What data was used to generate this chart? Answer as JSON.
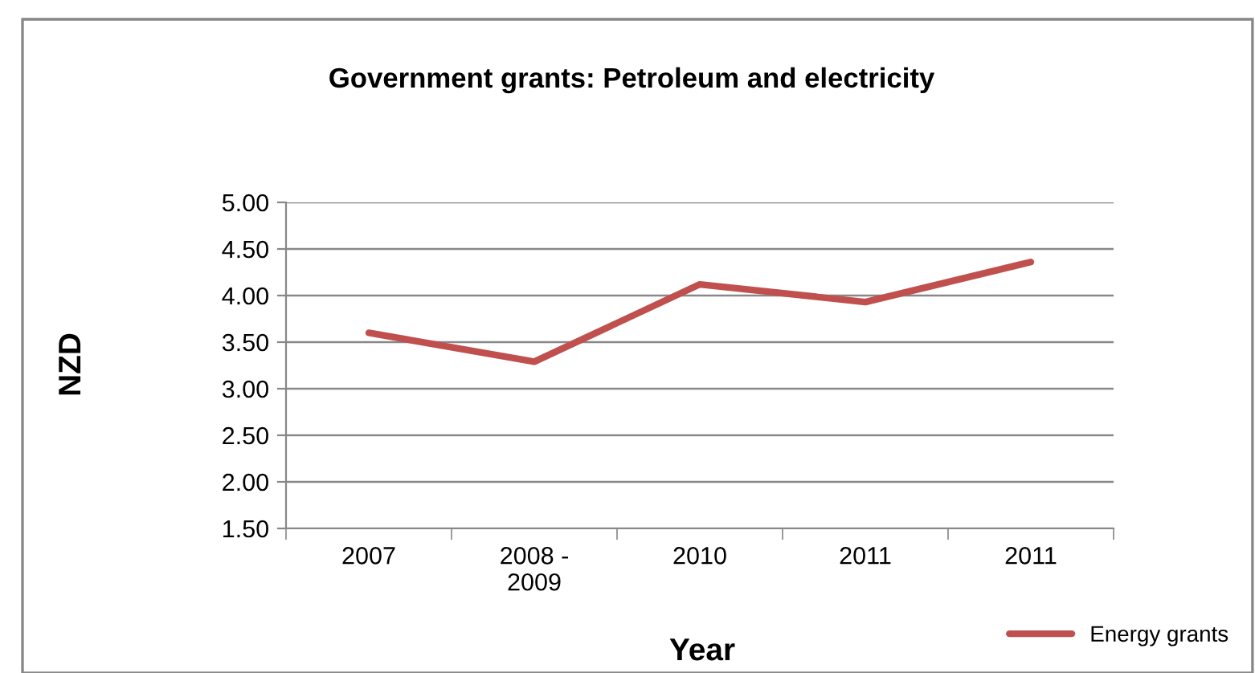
{
  "chart_data": {
    "type": "line",
    "title": "Government grants: Petroleum and electricity",
    "xlabel": "Year",
    "ylabel": "NZD",
    "categories": [
      "2007",
      "2008 -\n2009",
      "2010",
      "2011",
      "2011"
    ],
    "series": [
      {
        "name": "Energy grants",
        "color": "#c0504d",
        "values": [
          3.6,
          3.29,
          4.12,
          3.93,
          4.36
        ]
      }
    ],
    "ylim": [
      1.5,
      5.0
    ],
    "yticks": [
      {
        "value": 1.5,
        "label": "1.50"
      },
      {
        "value": 2.0,
        "label": "2.00"
      },
      {
        "value": 2.5,
        "label": "2.50"
      },
      {
        "value": 3.0,
        "label": "3.00"
      },
      {
        "value": 3.5,
        "label": "3.50"
      },
      {
        "value": 4.0,
        "label": "4.00"
      },
      {
        "value": 4.5,
        "label": "4.50"
      },
      {
        "value": 5.0,
        "label": "5.00"
      }
    ],
    "grid": "y",
    "legend": "bottom right",
    "marker": "none",
    "line_style": "solid"
  }
}
